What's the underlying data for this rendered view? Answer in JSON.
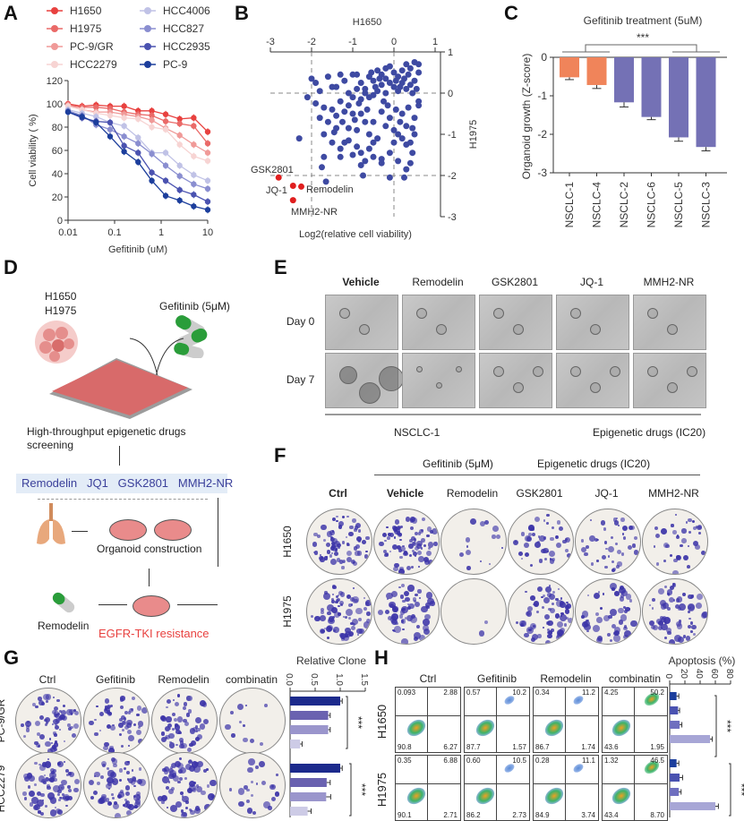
{
  "panels": {
    "A": {
      "label": "A"
    },
    "B": {
      "label": "B"
    },
    "C": {
      "label": "C"
    },
    "D": {
      "label": "D"
    },
    "E": {
      "label": "E"
    },
    "F": {
      "label": "F"
    },
    "G": {
      "label": "G"
    },
    "H": {
      "label": "H"
    }
  },
  "chart_data": [
    {
      "id": "A",
      "type": "line",
      "title": "",
      "xlabel": "Gefitinib (uM)",
      "ylabel": "Cell viability ( %)",
      "xscale": "log",
      "xlim": [
        0.01,
        10
      ],
      "ylim": [
        0,
        120
      ],
      "xticks": [
        "0.01",
        "0.1",
        "1",
        "10"
      ],
      "yticks": [
        "0",
        "20",
        "40",
        "60",
        "80",
        "100",
        "120"
      ],
      "legend_position": "top",
      "x": [
        0.01,
        0.02,
        0.04,
        0.08,
        0.16,
        0.32,
        0.63,
        1.25,
        2.5,
        5,
        10
      ],
      "series": [
        {
          "name": "H1650",
          "color": "#e8413f",
          "values": [
            100,
            98,
            99,
            98,
            98,
            94,
            94,
            91,
            87,
            88,
            76
          ]
        },
        {
          "name": "H1975",
          "color": "#ea6a68",
          "values": [
            99,
            97,
            97,
            96,
            93,
            91,
            90,
            85,
            83,
            81,
            66
          ]
        },
        {
          "name": "PC-9/GR",
          "color": "#f09a98",
          "values": [
            99,
            95,
            93,
            93,
            91,
            89,
            86,
            79,
            73,
            65,
            58
          ]
        },
        {
          "name": "HCC2279",
          "color": "#f7d4d3",
          "values": [
            98,
            95,
            92,
            90,
            88,
            87,
            80,
            78,
            65,
            55,
            51
          ]
        },
        {
          "name": "HCC4006",
          "color": "#c0c2e6",
          "values": [
            95,
            92,
            89,
            84,
            81,
            71,
            58,
            58,
            47,
            39,
            34
          ]
        },
        {
          "name": "HCC827",
          "color": "#8a8ed0",
          "values": [
            94,
            90,
            82,
            78,
            72,
            66,
            57,
            47,
            38,
            31,
            27
          ]
        },
        {
          "name": "HCC2935",
          "color": "#4a52b0",
          "values": [
            93,
            88,
            85,
            84,
            64,
            58,
            41,
            34,
            26,
            22,
            16
          ]
        },
        {
          "name": "PC-9",
          "color": "#1c3e9c",
          "values": [
            93,
            89,
            84,
            72,
            59,
            50,
            34,
            21,
            17,
            12,
            9
          ]
        }
      ]
    },
    {
      "id": "B",
      "type": "scatter",
      "title": "H1650",
      "xlabel": "Log2(relative cell viability)",
      "ylabel": "H1975",
      "xlim": [
        -3,
        1
      ],
      "ylim": [
        -3,
        1
      ],
      "xticks": [
        "-3",
        "-2",
        "-1",
        "0",
        "1"
      ],
      "yticks": [
        "1",
        "0",
        "-1",
        "-2",
        "-3"
      ],
      "reference_lines": {
        "x": [
          -2,
          0
        ],
        "y": [
          0,
          -2
        ]
      },
      "highlighted": [
        {
          "name": "GSK2801",
          "x": -2.8,
          "y": -2.05
        },
        {
          "name": "JQ-1",
          "x": -2.45,
          "y": -2.25
        },
        {
          "name": "Remodelin",
          "x": -2.25,
          "y": -2.27
        },
        {
          "name": "MMH2-NR",
          "x": -2.45,
          "y": -2.6
        }
      ],
      "points": [
        [
          -2.1,
          -0.1
        ],
        [
          -2.0,
          0.35
        ],
        [
          -1.9,
          0.25
        ],
        [
          -1.8,
          0.05
        ],
        [
          -1.6,
          0.4
        ],
        [
          -1.9,
          -0.25
        ],
        [
          -1.7,
          -0.35
        ],
        [
          -1.5,
          0.15
        ],
        [
          -1.4,
          0.15
        ],
        [
          -1.3,
          0.45
        ],
        [
          -1.2,
          0.3
        ],
        [
          -1.1,
          0.0
        ],
        [
          -1.0,
          0.45
        ],
        [
          -0.9,
          0.45
        ],
        [
          -0.8,
          0.25
        ],
        [
          -0.7,
          0.1
        ],
        [
          -0.6,
          0.4
        ],
        [
          -0.5,
          0.3
        ],
        [
          -0.4,
          0.55
        ],
        [
          -0.3,
          0.45
        ],
        [
          -0.2,
          0.35
        ],
        [
          -0.1,
          0.65
        ],
        [
          0.0,
          0.5
        ],
        [
          0.1,
          0.4
        ],
        [
          0.2,
          0.55
        ],
        [
          0.3,
          0.7
        ],
        [
          0.4,
          0.6
        ],
        [
          0.5,
          0.75
        ],
        [
          0.6,
          0.7
        ],
        [
          0.6,
          0.5
        ],
        [
          0.5,
          0.3
        ],
        [
          0.4,
          0.2
        ],
        [
          0.3,
          0.1
        ],
        [
          0.2,
          0.25
        ],
        [
          0.1,
          0.05
        ],
        [
          0.0,
          0.15
        ],
        [
          -0.1,
          0.25
        ],
        [
          -0.2,
          0.0
        ],
        [
          -0.3,
          0.2
        ],
        [
          -0.4,
          0.05
        ],
        [
          -0.5,
          -0.05
        ],
        [
          -0.6,
          -0.1
        ],
        [
          -0.7,
          0.0
        ],
        [
          -0.8,
          -0.15
        ],
        [
          -0.9,
          0.1
        ],
        [
          -1.0,
          -0.1
        ],
        [
          -1.1,
          -0.3
        ],
        [
          -1.2,
          -0.45
        ],
        [
          -1.3,
          -0.2
        ],
        [
          -1.4,
          -0.55
        ],
        [
          -1.5,
          -0.4
        ],
        [
          -1.6,
          -0.7
        ],
        [
          -1.8,
          -0.6
        ],
        [
          -2.3,
          -1.1
        ],
        [
          -1.7,
          -1.0
        ],
        [
          -1.4,
          -0.85
        ],
        [
          -1.2,
          -1.2
        ],
        [
          -1.1,
          -0.85
        ],
        [
          -1.0,
          -0.5
        ],
        [
          -0.9,
          -0.9
        ],
        [
          -0.8,
          -0.5
        ],
        [
          -0.7,
          -0.7
        ],
        [
          -0.6,
          -1.0
        ],
        [
          -0.5,
          -0.7
        ],
        [
          -0.4,
          -1.1
        ],
        [
          -0.3,
          -0.45
        ],
        [
          -0.2,
          -0.8
        ],
        [
          -0.1,
          -0.6
        ],
        [
          0.0,
          -0.9
        ],
        [
          0.1,
          -1.0
        ],
        [
          0.2,
          -0.5
        ],
        [
          0.3,
          -0.8
        ],
        [
          0.4,
          -1.2
        ],
        [
          0.5,
          -0.6
        ],
        [
          0.6,
          -0.3
        ],
        [
          0.5,
          -1.0
        ],
        [
          0.3,
          -1.25
        ],
        [
          0.2,
          -1.1
        ],
        [
          0.0,
          -1.2
        ],
        [
          -0.1,
          -1.45
        ],
        [
          -0.3,
          -1.6
        ],
        [
          -0.5,
          -1.2
        ],
        [
          -0.6,
          -1.35
        ],
        [
          -0.7,
          -1.65
        ],
        [
          -0.8,
          -1.45
        ],
        [
          -0.9,
          -1.3
        ],
        [
          -1.0,
          -1.5
        ],
        [
          -1.1,
          -1.15
        ],
        [
          -1.3,
          -1.35
        ],
        [
          -1.5,
          -1.2
        ],
        [
          -1.7,
          -1.55
        ],
        [
          -1.75,
          -1.8
        ],
        [
          -1.65,
          -2.15
        ],
        [
          -1.3,
          -1.55
        ],
        [
          -0.8,
          -1.75
        ],
        [
          -0.75,
          -2.0
        ],
        [
          -0.5,
          -1.55
        ],
        [
          -0.3,
          -1.7
        ],
        [
          -0.1,
          -2.05
        ],
        [
          0.1,
          -1.65
        ],
        [
          0.3,
          -1.85
        ],
        [
          0.25,
          -2.05
        ],
        [
          0.4,
          -1.7
        ],
        [
          0.45,
          -1.45
        ],
        [
          -0.2,
          0.6
        ],
        [
          -0.35,
          0.35
        ],
        [
          0.05,
          0.3
        ],
        [
          0.15,
          0.15
        ],
        [
          0.25,
          0.35
        ],
        [
          0.35,
          0.45
        ],
        [
          0.45,
          0.0
        ],
        [
          0.55,
          0.1
        ],
        [
          0.6,
          -0.2
        ],
        [
          -0.45,
          0.15
        ],
        [
          -0.55,
          0.5
        ],
        [
          -0.15,
          -0.3
        ],
        [
          -0.25,
          -0.2
        ],
        [
          0.05,
          -0.4
        ],
        [
          0.15,
          -0.7
        ],
        [
          0.35,
          -0.35
        ],
        [
          -0.65,
          -0.4
        ],
        [
          -0.85,
          -0.25
        ],
        [
          -0.95,
          -0.65
        ],
        [
          -1.25,
          -0.7
        ],
        [
          -1.45,
          -0.95
        ],
        [
          0.45,
          -0.85
        ]
      ]
    },
    {
      "id": "C",
      "type": "bar",
      "title": "Gefitinib treatment (5uM)",
      "xlabel": "",
      "ylabel": "Organoid growth (Z-score)",
      "ylim": [
        -3,
        0
      ],
      "yticks": [
        "0",
        "-1",
        "-2",
        "-3"
      ],
      "categories": [
        "NSCLC-1",
        "NSCLC-4",
        "NSCLC-2",
        "NSCLC-6",
        "NSCLC-5",
        "NSCLC-3"
      ],
      "values": [
        -0.52,
        -0.72,
        -1.17,
        -1.55,
        -2.08,
        -2.33
      ],
      "errors": [
        0.06,
        0.09,
        0.12,
        0.07,
        0.1,
        0.1
      ],
      "colors": [
        "#f0845a",
        "#f0845a",
        "#7471b5",
        "#7471b5",
        "#7471b5",
        "#7471b5"
      ],
      "significance": "***"
    },
    {
      "id": "G-bar",
      "type": "bar",
      "orientation": "horizontal",
      "title": "Relative Clone",
      "xlim": [
        0,
        1.5
      ],
      "xticks": [
        "0.0",
        "0.5",
        "1.0",
        "1.5"
      ],
      "groups": [
        {
          "name": "PC-9/GR",
          "values": [
            1.0,
            0.76,
            0.76,
            0.2
          ],
          "errors": [
            0.04,
            0.04,
            0.04,
            0.04
          ],
          "significance": "***"
        },
        {
          "name": "HCC2279",
          "values": [
            1.0,
            0.73,
            0.72,
            0.35
          ],
          "errors": [
            0.04,
            0.07,
            0.09,
            0.07
          ],
          "significance": "***"
        }
      ],
      "colors": [
        "#1c2a8c",
        "#6a62b0",
        "#9a95cc",
        "#cdcbe6"
      ],
      "categories": [
        "Ctrl",
        "Gefitinib",
        "Remodelin",
        "combinatin"
      ]
    },
    {
      "id": "H-bar",
      "type": "bar",
      "orientation": "horizontal",
      "title": "Apoptosis (%)",
      "xlim": [
        0,
        80
      ],
      "xticks": [
        "0",
        "20",
        "40",
        "60",
        "80"
      ],
      "groups": [
        {
          "name": "H1650",
          "values": [
            9,
            11,
            13,
            53
          ],
          "errors": [
            3,
            2,
            3,
            3
          ],
          "significance": "***"
        },
        {
          "name": "H1975",
          "values": [
            9,
            13,
            12,
            60
          ],
          "errors": [
            3,
            4,
            3,
            4
          ],
          "significance": "***"
        }
      ],
      "colors": [
        "#1c3e9c",
        "#4a52b0",
        "#6f6fbf",
        "#a7a6d6"
      ],
      "categories": [
        "Ctrl",
        "Gefitinib",
        "Remodelin",
        "combinatin"
      ]
    }
  ],
  "panelD": {
    "cell_lines": [
      "H1650",
      "H1975"
    ],
    "drug": "Gefitinib (5μM)",
    "screen_label_1": "High-throughput epigenetic drugs",
    "screen_label_2": "screening",
    "hits": "Remodelin   JQ1   GSK2801   MMH2-NR",
    "organoid_label": "Organoid construction",
    "result_label": "EGFR-TKI resistance",
    "final_drug": "Remodelin",
    "result_color": "#e8413f",
    "hits_color": "#3a3f9a"
  },
  "panelE": {
    "columns": [
      "Vehicle",
      "Remodelin",
      "GSK2801",
      "JQ-1",
      "MMH2-NR"
    ],
    "rows": [
      "Day 0",
      "Day 7"
    ],
    "footer_left": "NSCLC-1",
    "footer_right": "Epigenetic drugs (IC20)"
  },
  "panelF": {
    "header_left": "Gefitinib (5μM)",
    "header_right": "Epigenetic drugs (IC20)",
    "columns": [
      "Ctrl",
      "Vehicle",
      "Remodelin",
      "GSK2801",
      "JQ-1",
      "MMH2-NR"
    ],
    "rows": [
      "H1650",
      "H1975"
    ],
    "density": [
      [
        0.8,
        0.9,
        0.15,
        0.5,
        0.45,
        0.4
      ],
      [
        0.85,
        0.7,
        0.02,
        0.75,
        0.55,
        0.7
      ]
    ]
  },
  "panelG": {
    "columns": [
      "Ctrl",
      "Gefitinib",
      "Remodelin",
      "combinatin"
    ],
    "rows": [
      "PC-9/GR",
      "HCC2279"
    ],
    "density": [
      [
        0.75,
        0.6,
        0.6,
        0.12
      ],
      [
        0.85,
        0.8,
        0.75,
        0.25
      ]
    ]
  },
  "panelH": {
    "columns": [
      "Ctrl",
      "Gefitinib",
      "Remodelin",
      "combinatin"
    ],
    "rows": [
      "H1650",
      "H1975"
    ],
    "quadrants": [
      [
        [
          "0.093",
          "2.88",
          "90.8",
          "6.27"
        ],
        [
          "0.57",
          "10.2",
          "87.7",
          "1.57"
        ],
        [
          "0.34",
          "11.2",
          "86.7",
          "1.74"
        ],
        [
          "4.25",
          "50.2",
          "43.6",
          "1.95"
        ]
      ],
      [
        [
          "0.35",
          "6.88",
          "90.1",
          "2.71"
        ],
        [
          "0.60",
          "10.5",
          "86.2",
          "2.73"
        ],
        [
          "0.28",
          "11.1",
          "84.9",
          "3.74"
        ],
        [
          "1.32",
          "46.5",
          "43.4",
          "8.70"
        ]
      ]
    ]
  }
}
